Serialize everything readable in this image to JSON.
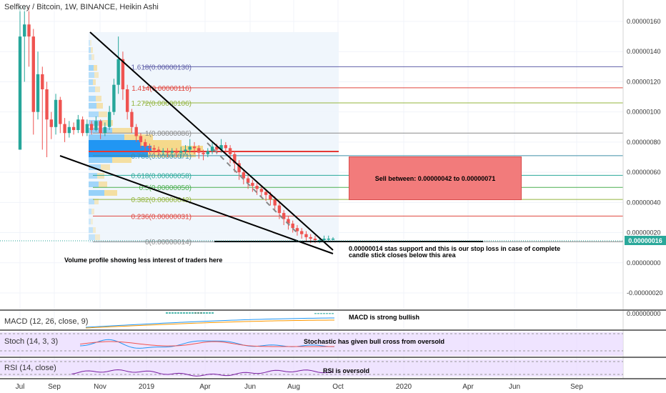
{
  "chart_data": {
    "type": "candlestick",
    "title": "Selfkey / Bitcoin, 1W, BINANCE, Heikin Ashi",
    "x_tick_labels": [
      "Jul",
      "Sep",
      "Nov",
      "2019",
      "Apr",
      "Jun",
      "Aug",
      "Oct",
      "2020",
      "Apr",
      "Jun",
      "Sep"
    ],
    "y_tick_labels": [
      "0.00000160",
      "0.00000140",
      "0.00000120",
      "0.00000100",
      "0.00000080",
      "0.00000060",
      "0.00000040",
      "0.00000020",
      "0.00000000",
      "-0.00000020"
    ],
    "ylim": [
      -2.5e-07,
      1.7e-06
    ],
    "last_price_label": "0.00000016",
    "fib_levels": [
      {
        "label": "1.618(0.00000130)",
        "value": 1.3e-06,
        "color": "#5f5fa8"
      },
      {
        "label": "1.414(0.00000116)",
        "value": 1.16e-06,
        "color": "#e0463e"
      },
      {
        "label": "1.272(0.00000106)",
        "value": 1.06e-06,
        "color": "#93b43d"
      },
      {
        "label": "1(0.00000086)",
        "value": 8.6e-07,
        "color": "#8a8a8a"
      },
      {
        "label": "0.786(0.00000071)",
        "value": 7.1e-07,
        "color": "#3f8fa8"
      },
      {
        "label": "0.618(0.00000058)",
        "value": 5.8e-07,
        "color": "#2aa89a"
      },
      {
        "label": "0.5(0.00000050)",
        "value": 5e-07,
        "color": "#4caf50"
      },
      {
        "label": "0.382(0.00000042)",
        "value": 4.2e-07,
        "color": "#93b43d"
      },
      {
        "label": "0.236(0.00000031)",
        "value": 3.1e-07,
        "color": "#e0463e"
      },
      {
        "label": "0(0.00000014)",
        "value": 1.4e-07,
        "color": "#8a8a8a"
      }
    ],
    "annotations": {
      "sell_zone": "Sell between: 0.00000042 to 0.00000071",
      "support_note_line1": "0.00000014 stas support and this is our stop loss in case of complete",
      "support_note_line2": "candle stick closes below this area",
      "volume_note": "Volume profile showing less interest of traders here",
      "macd_note": "MACD is strong bullish",
      "stoch_note": "Stochastic has given bull cross from oversold",
      "rsi_note": "RSI is oversold"
    },
    "indicators": {
      "macd": {
        "label": "MACD (12, 26, close, 9)",
        "axis_label": "0.00000000"
      },
      "stoch": {
        "label": "Stoch (14, 3, 3)"
      },
      "rsi": {
        "label": "RSI (14, close)"
      }
    },
    "candles": [
      [
        7.5e-07,
        1.5e-06,
        7.5e-07,
        1.7e-06
      ],
      [
        1.5e-06,
        1.58e-06,
        1.2e-06,
        1.7e-06
      ],
      [
        1.58e-06,
        1.5e-06,
        1.3e-06,
        1.7e-06
      ],
      [
        1.5e-06,
        1e-06,
        8.5e-07,
        1.55e-06
      ],
      [
        1e-06,
        1.25e-06,
        9.5e-07,
        1.4e-06
      ],
      [
        1.25e-06,
        1.15e-06,
        7.5e-07,
        1.3e-06
      ],
      [
        1.15e-06,
        9.5e-07,
        7e-07,
        1.2e-06
      ],
      [
        9.5e-07,
        9e-07,
        8.2e-07,
        1e-06
      ],
      [
        9e-07,
        1.08e-06,
        8.5e-07,
        1.12e-06
      ],
      [
        1.08e-06,
        9.2e-07,
        8.6e-07,
        1.1e-06
      ],
      [
        9.2e-07,
        8.6e-07,
        8e-07,
        9.6e-07
      ],
      [
        8.6e-07,
        9e-07,
        8.3e-07,
        9.4e-07
      ],
      [
        9e-07,
        8.8e-07,
        8.5e-07,
        9.3e-07
      ],
      [
        8.8e-07,
        9.5e-07,
        8.6e-07,
        9.8e-07
      ],
      [
        9.5e-07,
        8.6e-07,
        8.4e-07,
        9.7e-07
      ],
      [
        8.6e-07,
        9.2e-07,
        8.4e-07,
        9.5e-07
      ],
      [
        9.2e-07,
        8.8e-07,
        8.5e-07,
        9.4e-07
      ],
      [
        8.8e-07,
        9.4e-07,
        8.7e-07,
        9.7e-07
      ],
      [
        9.4e-07,
        8.6e-07,
        8.2e-07,
        9.5e-07
      ],
      [
        8.6e-07,
        9e-07,
        8.4e-07,
        9.3e-07
      ],
      [
        9e-07,
        1e-06,
        8.8e-07,
        1.04e-06
      ],
      [
        1e-06,
        1.18e-06,
        9.8e-07,
        1.22e-06
      ],
      [
        1.18e-06,
        1.35e-06,
        1.12e-06,
        1.5e-06
      ],
      [
        1.35e-06,
        1.15e-06,
        1.08e-06,
        1.4e-06
      ],
      [
        1.15e-06,
        1e-06,
        9.5e-07,
        1.18e-06
      ],
      [
        1e-06,
        9e-07,
        8.6e-07,
        1.02e-06
      ],
      [
        9e-07,
        8.4e-07,
        8e-07,
        9.2e-07
      ],
      [
        8.4e-07,
        8e-07,
        7.6e-07,
        8.6e-07
      ],
      [
        8e-07,
        7.7e-07,
        7.4e-07,
        8.2e-07
      ],
      [
        7.7e-07,
        7.6e-07,
        7.2e-07,
        7.9e-07
      ],
      [
        7.6e-07,
        7.5e-07,
        7.2e-07,
        7.8e-07
      ],
      [
        7.5e-07,
        7.4e-07,
        7.1e-07,
        7.7e-07
      ],
      [
        7.4e-07,
        7.4e-07,
        7.1e-07,
        7.6e-07
      ],
      [
        7.4e-07,
        7.3e-07,
        7e-07,
        7.6e-07
      ],
      [
        7.3e-07,
        7.4e-07,
        7e-07,
        7.6e-07
      ],
      [
        7.4e-07,
        7.3e-07,
        7e-07,
        7.6e-07
      ],
      [
        7.3e-07,
        7.4e-07,
        6.9e-07,
        7.7e-07
      ],
      [
        7.4e-07,
        7.5e-07,
        7.2e-07,
        7.8e-07
      ],
      [
        7.5e-07,
        7.7e-07,
        7.3e-07,
        8.2e-07
      ],
      [
        7.7e-07,
        7.6e-07,
        7.2e-07,
        8e-07
      ],
      [
        7.6e-07,
        7.3e-07,
        6.9e-07,
        7.8e-07
      ],
      [
        7.3e-07,
        7.2e-07,
        6.8e-07,
        7.5e-07
      ],
      [
        7.2e-07,
        7.4e-07,
        7e-07,
        7.6e-07
      ],
      [
        7.4e-07,
        7.7e-07,
        7.2e-07,
        8e-07
      ],
      [
        7.7e-07,
        7.5e-07,
        7.2e-07,
        7.9e-07
      ],
      [
        7.5e-07,
        7.8e-07,
        7.3e-07,
        8.2e-07
      ],
      [
        7.8e-07,
        7.6e-07,
        7.2e-07,
        8e-07
      ],
      [
        7.6e-07,
        7.2e-07,
        6.6e-07,
        7.8e-07
      ],
      [
        7.2e-07,
        6.6e-07,
        6e-07,
        7.4e-07
      ],
      [
        6.6e-07,
        6e-07,
        5.5e-07,
        6.8e-07
      ],
      [
        6e-07,
        5.6e-07,
        5.2e-07,
        6.2e-07
      ],
      [
        5.6e-07,
        5.3e-07,
        4.9e-07,
        5.8e-07
      ],
      [
        5.3e-07,
        5.1e-07,
        4.7e-07,
        5.5e-07
      ],
      [
        5.1e-07,
        4.9e-07,
        4.5e-07,
        5.3e-07
      ],
      [
        4.9e-07,
        4.7e-07,
        4.3e-07,
        5.1e-07
      ],
      [
        4.7e-07,
        4.5e-07,
        4.1e-07,
        4.9e-07
      ],
      [
        4.5e-07,
        4.2e-07,
        3.8e-07,
        4.7e-07
      ],
      [
        4.2e-07,
        3.8e-07,
        3.4e-07,
        4.4e-07
      ],
      [
        3.8e-07,
        3.3e-07,
        2.9e-07,
        4e-07
      ],
      [
        3.3e-07,
        2.9e-07,
        2.5e-07,
        3.5e-07
      ],
      [
        2.9e-07,
        2.6e-07,
        2.2e-07,
        3.1e-07
      ],
      [
        2.6e-07,
        2.3e-07,
        2e-07,
        2.8e-07
      ],
      [
        2.3e-07,
        2.1e-07,
        1.8e-07,
        2.5e-07
      ],
      [
        2.1e-07,
        1.9e-07,
        1.6e-07,
        2.3e-07
      ],
      [
        1.9e-07,
        1.7e-07,
        1.4e-07,
        2.1e-07
      ],
      [
        1.7e-07,
        1.6e-07,
        1.3e-07,
        1.9e-07
      ],
      [
        1.6e-07,
        1.5e-07,
        1.3e-07,
        1.8e-07
      ],
      [
        1.5e-07,
        1.5e-07,
        1.3e-07,
        1.7e-07
      ],
      [
        1.5e-07,
        1.6e-07,
        1.4e-07,
        1.8e-07
      ],
      [
        1.6e-07,
        1.6e-07,
        1.4e-07,
        1.8e-07
      ],
      [
        1.6e-07,
        1.6e-07,
        1.5e-07,
        1.7e-07
      ]
    ]
  },
  "colors": {
    "up": "#26a69a",
    "down": "#ef5350",
    "grid": "#f0f3fa",
    "axis_text": "#333333",
    "volume_up": "#7fc8f8",
    "volume_down": "#f5d98b",
    "volume_poc": "#2196f3",
    "macd_line": "#2196f3",
    "signal_line": "#ff9800",
    "stoch_k": "#2196f3",
    "stoch_d": "#ef5350",
    "rsi_line": "#7b1fa2",
    "band": "#e8d8ff"
  }
}
